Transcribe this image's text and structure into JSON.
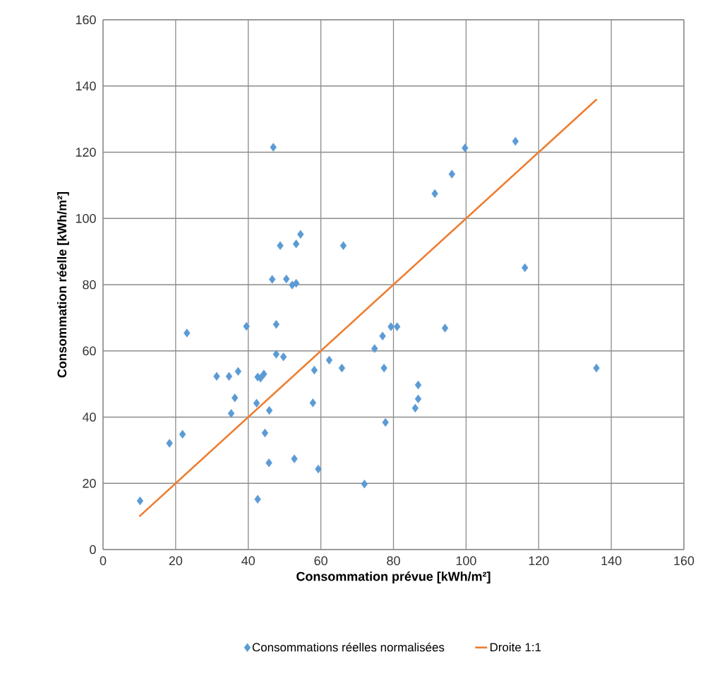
{
  "chart_data": {
    "type": "scatter",
    "xlabel": "Consommation prévue [kWh/m²]",
    "ylabel": "Consommation réelle [kWh/m²]",
    "xlim": [
      0,
      160
    ],
    "ylim": [
      0,
      160
    ],
    "xticks": [
      0,
      20,
      40,
      60,
      80,
      100,
      120,
      140,
      160
    ],
    "yticks": [
      0,
      20,
      40,
      60,
      80,
      100,
      120,
      140,
      160
    ],
    "grid": true,
    "legend": "bottom",
    "series": [
      {
        "name": "Consommations réelles normalisées",
        "marker": "diamond",
        "color": "#5b9bd5",
        "x": [
          10.2,
          18.3,
          21.9,
          23.1,
          31.3,
          34.7,
          37.2,
          35.3,
          36.3,
          39.5,
          42.3,
          42.6,
          43.4,
          44.3,
          42.6,
          44.6,
          45.8,
          45.7,
          46.6,
          46.9,
          47.7,
          47.7,
          49.7,
          48.8,
          50.5,
          52.1,
          53.2,
          53.2,
          54.4,
          52.7,
          58.2,
          57.8,
          59.3,
          62.3,
          65.8,
          66.2,
          72.0,
          74.8,
          77.0,
          77.4,
          77.8,
          79.3,
          81.0,
          86.0,
          86.8,
          86.8,
          91.4,
          94.2,
          96.1,
          99.7,
          113.6,
          116.2,
          135.9
        ],
        "values": [
          14.7,
          32.1,
          34.8,
          65.4,
          52.3,
          52.3,
          53.8,
          41.1,
          45.8,
          67.4,
          44.2,
          52.1,
          51.8,
          53.0,
          15.2,
          35.2,
          42.0,
          26.2,
          81.6,
          121.5,
          68.0,
          59.0,
          58.2,
          91.8,
          81.7,
          79.9,
          80.4,
          92.3,
          95.2,
          27.4,
          54.2,
          44.3,
          24.3,
          57.2,
          54.8,
          91.8,
          19.8,
          60.7,
          64.5,
          54.8,
          38.4,
          67.3,
          67.3,
          42.7,
          45.5,
          49.7,
          107.5,
          66.9,
          113.4,
          121.3,
          123.3,
          85.1,
          54.8
        ]
      },
      {
        "name": "Droite 1:1",
        "type": "line",
        "color": "#ed7d31",
        "x": [
          10,
          136
        ],
        "values": [
          10,
          136
        ]
      }
    ]
  }
}
